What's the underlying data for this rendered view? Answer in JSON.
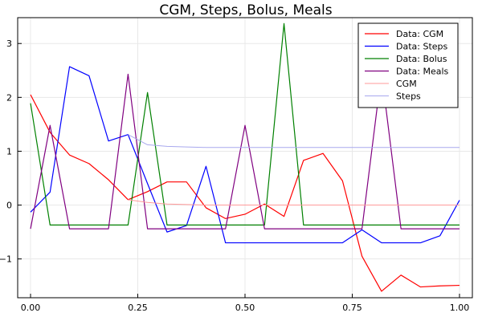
{
  "chart_data": {
    "type": "line",
    "title": "CGM, Steps, Bolus, Meals",
    "xlabel": "",
    "ylabel": "",
    "xlim": [
      -0.03,
      1.03
    ],
    "ylim": [
      -1.72,
      3.48
    ],
    "x_ticks": [
      {
        "value": 0.0,
        "label": "0.00"
      },
      {
        "value": 0.25,
        "label": "0.25"
      },
      {
        "value": 0.5,
        "label": "0.50"
      },
      {
        "value": 0.75,
        "label": "0.75"
      },
      {
        "value": 1.0,
        "label": "1.00"
      }
    ],
    "y_ticks": [
      {
        "value": -1,
        "label": "−1"
      },
      {
        "value": 0,
        "label": "0"
      },
      {
        "value": 1,
        "label": "1"
      },
      {
        "value": 2,
        "label": "2"
      },
      {
        "value": 3,
        "label": "3"
      }
    ],
    "grid": true,
    "legend_position": "top-right",
    "x": [
      0.0,
      0.0455,
      0.0909,
      0.1364,
      0.1818,
      0.2273,
      0.2727,
      0.3182,
      0.3636,
      0.4091,
      0.4545,
      0.5,
      0.5455,
      0.5909,
      0.6364,
      0.6818,
      0.7273,
      0.7727,
      0.8182,
      0.8636,
      0.9091,
      0.9545,
      1.0
    ],
    "series": [
      {
        "name": "Data: CGM",
        "color": "#ff0000",
        "faded": false,
        "values": [
          2.05,
          1.35,
          0.93,
          0.77,
          0.47,
          0.1,
          0.25,
          0.43,
          0.43,
          -0.05,
          -0.25,
          -0.17,
          0.02,
          -0.21,
          0.83,
          0.96,
          0.45,
          -0.95,
          -1.6,
          -1.3,
          -1.52,
          -1.5,
          -1.49
        ]
      },
      {
        "name": "Data: Steps",
        "color": "#0000ff",
        "faded": false,
        "values": [
          -0.13,
          0.24,
          2.57,
          2.4,
          1.19,
          1.31,
          0.4,
          -0.5,
          -0.38,
          0.72,
          -0.7,
          -0.7,
          -0.7,
          -0.7,
          -0.7,
          -0.7,
          -0.7,
          -0.46,
          -0.7,
          -0.7,
          -0.7,
          -0.57,
          0.09
        ]
      },
      {
        "name": "Data: Bolus",
        "color": "#008000",
        "faded": false,
        "values": [
          1.89,
          -0.37,
          -0.37,
          -0.37,
          -0.37,
          -0.37,
          2.09,
          -0.37,
          -0.37,
          -0.37,
          -0.37,
          -0.37,
          -0.37,
          3.37,
          -0.37,
          -0.37,
          -0.37,
          -0.37,
          -0.37,
          -0.37,
          -0.37,
          -0.37,
          -0.37
        ]
      },
      {
        "name": "Data: Meals",
        "color": "#800080",
        "faded": false,
        "values": [
          -0.44,
          1.48,
          -0.44,
          -0.44,
          -0.44,
          2.43,
          -0.44,
          -0.44,
          -0.44,
          -0.44,
          -0.44,
          1.48,
          -0.44,
          -0.44,
          -0.44,
          -0.44,
          -0.44,
          -0.44,
          2.46,
          -0.44,
          -0.44,
          -0.44,
          -0.44
        ]
      },
      {
        "name": "CGM",
        "color": "#ff9a9a",
        "faded": true,
        "values": [
          null,
          null,
          null,
          null,
          null,
          0.1,
          0.05,
          0.02,
          0.01,
          0.0,
          0.0,
          0.0,
          0.0,
          0.0,
          0.0,
          0.0,
          0.0,
          0.0,
          0.0,
          0.0,
          0.0,
          0.0,
          0.0
        ]
      },
      {
        "name": "Steps",
        "color": "#a8a8ee",
        "faded": true,
        "values": [
          null,
          null,
          null,
          null,
          null,
          1.31,
          1.12,
          1.09,
          1.08,
          1.07,
          1.07,
          1.07,
          1.07,
          1.07,
          1.07,
          1.07,
          1.07,
          1.07,
          1.07,
          1.07,
          1.07,
          1.07,
          1.07
        ]
      }
    ]
  }
}
